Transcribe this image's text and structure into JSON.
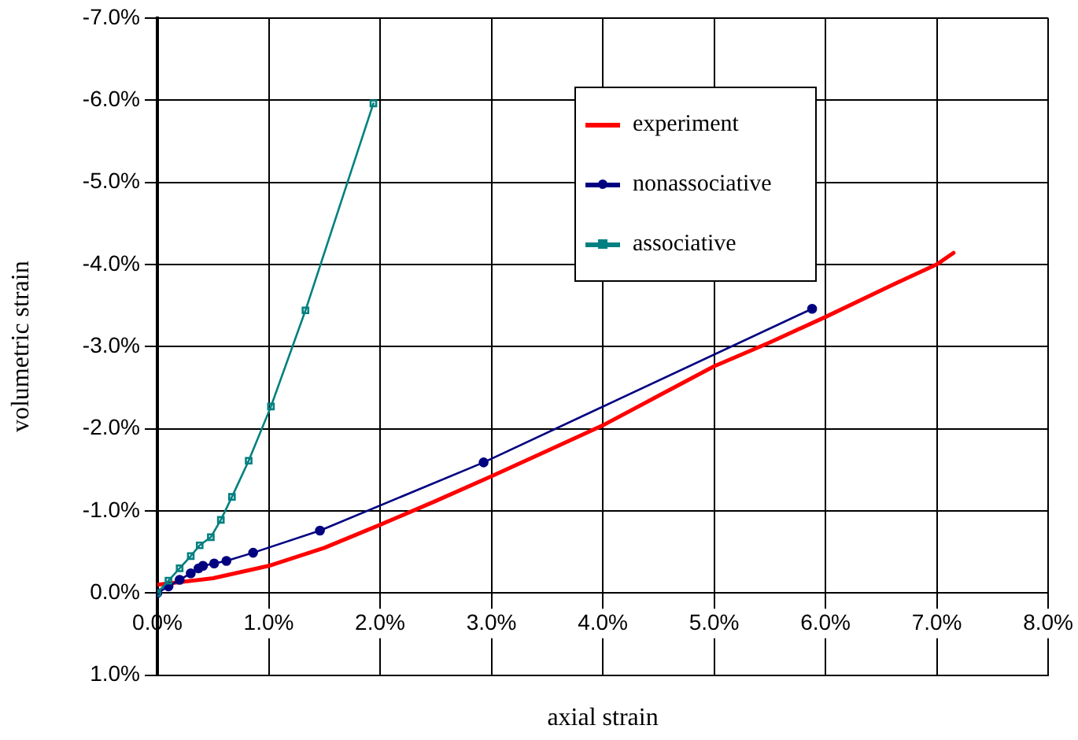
{
  "chart_data": {
    "type": "line",
    "xlabel": "axial strain",
    "ylabel": "volumetric strain",
    "xlim": [
      0,
      8
    ],
    "xticks": [
      {
        "value": 0,
        "label": "0.0%"
      },
      {
        "value": 1,
        "label": "1.0%"
      },
      {
        "value": 2,
        "label": "2.0%"
      },
      {
        "value": 3,
        "label": "3.0%"
      },
      {
        "value": 4,
        "label": "4.0%"
      },
      {
        "value": 5,
        "label": "5.0%"
      },
      {
        "value": 6,
        "label": "6.0%"
      },
      {
        "value": 7,
        "label": "7.0%"
      },
      {
        "value": 8,
        "label": "8.0%"
      }
    ],
    "ylim": [
      1,
      -7
    ],
    "yticks": [
      {
        "value": 1,
        "label": "1.0%"
      },
      {
        "value": 0,
        "label": "0.0%"
      },
      {
        "value": -1,
        "label": "-1.0%"
      },
      {
        "value": -2,
        "label": "-2.0%"
      },
      {
        "value": -3,
        "label": "-3.0%"
      },
      {
        "value": -4,
        "label": "-4.0%"
      },
      {
        "value": -5,
        "label": "-5.0%"
      },
      {
        "value": -6,
        "label": "-6.0%"
      },
      {
        "value": -7,
        "label": "-7.0%"
      }
    ],
    "grid": true,
    "legend": "top right",
    "series": [
      {
        "name": "experiment",
        "color": "#ff0000",
        "marker": "none",
        "x": [
          0,
          0.5,
          1,
          1.5,
          2,
          2.5,
          3,
          3.5,
          4,
          4.5,
          5,
          5.5,
          6,
          6.6,
          7,
          7.15
        ],
        "values": [
          -0.1,
          -0.18,
          -0.33,
          -0.55,
          -0.83,
          -1.12,
          -1.42,
          -1.73,
          -2.04,
          -2.4,
          -2.76,
          -3.05,
          -3.36,
          -3.75,
          -4.0,
          -4.14
        ]
      },
      {
        "name": "nonassociative",
        "color": "#000080",
        "marker": "circle",
        "x": [
          0,
          0.1,
          0.2,
          0.3,
          0.37,
          0.41,
          0.51,
          0.62,
          0.86,
          1.46,
          2.93,
          5.88
        ],
        "values": [
          0,
          -0.08,
          -0.16,
          -0.24,
          -0.3,
          -0.33,
          -0.36,
          -0.39,
          -0.49,
          -0.76,
          -1.59,
          -3.46
        ]
      },
      {
        "name": "associative",
        "color": "#008080",
        "marker": "square",
        "x": [
          0,
          0.1,
          0.2,
          0.3,
          0.38,
          0.48,
          0.57,
          0.67,
          0.82,
          1.02,
          1.33,
          1.94
        ],
        "values": [
          0,
          -0.15,
          -0.3,
          -0.45,
          -0.58,
          -0.68,
          -0.89,
          -1.17,
          -1.61,
          -2.27,
          -3.44,
          -5.96
        ]
      }
    ]
  }
}
